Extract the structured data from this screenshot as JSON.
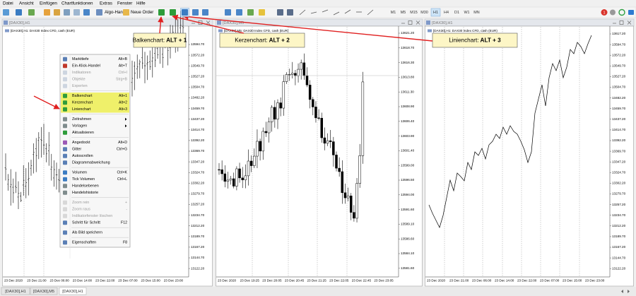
{
  "menubar": [
    "Datei",
    "Ansicht",
    "Einfügen",
    "Chartfunktionen",
    "Extras",
    "Fenster",
    "Hilfe"
  ],
  "toolbar": {
    "algo": "Algo-Handel",
    "order": "Neue Order",
    "timeframes": [
      "M1",
      "M5",
      "M15",
      "M30",
      "H1",
      "H4",
      "D1",
      "W1",
      "MN"
    ],
    "active_timeframe": "H1",
    "badge": "1"
  },
  "windows": [
    {
      "title": "[DAX30],H1",
      "info": "[DAX30],H1: DAX30 Index CFD, cash (EUR)",
      "chart": "bar",
      "prices": [
        "13594.70",
        "13572.20",
        "13549.70",
        "13527.20",
        "13504.70",
        "13482.20",
        "13459.70",
        "13437.20",
        "13414.70",
        "13392.20",
        "13369.70",
        "13347.20",
        "13324.70",
        "13302.20",
        "13279.70",
        "13257.20",
        "13234.70",
        "13212.20",
        "13189.70",
        "13167.20",
        "13144.70",
        "13122.20"
      ],
      "times": [
        "23 Dec 2020",
        "23 Dec 21:00",
        "23 Dec 06:00",
        "23 Dec 14:00",
        "23 Dec 22:00",
        "23 Dec 07:00",
        "23 Dec 15:00",
        "23 Dec 23:00"
      ]
    },
    {
      "title": "[DAX30],M5",
      "info": "[DAX30],M5: DAX30 Index CFD, cash (EUR)",
      "chart": "candle",
      "prices": [
        "13621.20",
        "13618.70",
        "13616.30",
        "13613.80",
        "13611.30",
        "13608.90",
        "13606.40",
        "13603.90",
        "13601.40",
        "13599.00",
        "13596.50",
        "13594.00",
        "13591.60",
        "13589.10",
        "13586.60",
        "13584.10",
        "13581.60"
      ],
      "times": [
        "23 Dec 2020",
        "23 Dec 19:25",
        "23 Dec 20:05",
        "23 Dec 20:45",
        "23 Dec 21:25",
        "23 Dec 22:05",
        "23 Dec 22:45",
        "23 Dec 23:05"
      ]
    },
    {
      "title": "[DAX30],H1",
      "info": "[DAX30],H1: DAX30 Index CFD, cash (EUR)",
      "chart": "line",
      "prices": [
        "13617.20",
        "13594.70",
        "13572.20",
        "13549.70",
        "13527.20",
        "13504.70",
        "13482.20",
        "13459.70",
        "13437.20",
        "13414.70",
        "13392.20",
        "13369.70",
        "13347.20",
        "13324.70",
        "13302.20",
        "13279.70",
        "13257.20",
        "13234.70",
        "13212.20",
        "13189.70",
        "13167.20",
        "13144.70",
        "13122.20"
      ],
      "times": [
        "23 Dec 2020",
        "23 Dec 21:00",
        "23 Dec 06:00",
        "23 Dec 14:00",
        "23 Dec 22:00",
        "23 Dec 07:00",
        "23 Dec 15:00",
        "23 Dec 23:00"
      ]
    }
  ],
  "context_menu": {
    "sections": [
      [
        {
          "label": "Markttiefe",
          "shortcut": "Alt+B"
        },
        {
          "label": "Ein-Klick-Handel",
          "shortcut": "Alt+T"
        },
        {
          "label": "Indikatoren",
          "shortcut": "Ctrl+I",
          "disabled": true
        },
        {
          "label": "Objekte",
          "shortcut": "Strg+B",
          "disabled": true
        },
        {
          "label": "Experten",
          "disabled": true
        }
      ],
      [
        {
          "label": "Balkenchart",
          "shortcut": "Alt+1",
          "highlighted": true
        },
        {
          "label": "Kerzenchart",
          "shortcut": "Alt+2",
          "highlighted": true
        },
        {
          "label": "Linienchart",
          "shortcut": "Alt+3",
          "highlighted": true
        }
      ],
      [
        {
          "label": "Zeitrahmen",
          "submenu": true
        },
        {
          "label": "Vorlagen",
          "submenu": true
        },
        {
          "label": "Aktualisieren"
        }
      ],
      [
        {
          "label": "Angedockt",
          "shortcut": "Alt+D"
        },
        {
          "label": "Gitter",
          "shortcut": "Ctrl+G"
        },
        {
          "label": "Autoscrollen"
        },
        {
          "label": "Diagrammabweichung"
        }
      ],
      [
        {
          "label": "Volumen",
          "shortcut": "Ctrl+K"
        },
        {
          "label": "Tick Volumen",
          "shortcut": "Ctrl+L"
        },
        {
          "label": "Handelsebenen"
        },
        {
          "label": "Handelshistorie"
        }
      ],
      [
        {
          "label": "Zoom rein",
          "shortcut": "+",
          "disabled": true
        },
        {
          "label": "Zoom raus",
          "shortcut": "-",
          "disabled": true
        },
        {
          "label": "Indikatorfenster löschen",
          "disabled": true
        },
        {
          "label": "Schritt für Schritt",
          "shortcut": "F12"
        }
      ],
      [
        {
          "label": "Als Bild speichern"
        }
      ],
      [
        {
          "label": "Eigenschaften",
          "shortcut": "F8"
        }
      ]
    ]
  },
  "callouts": [
    {
      "label": "Balkenchart:",
      "keys": "ALT + 1"
    },
    {
      "label": "Kerzenchart:",
      "keys": "ALT + 2"
    },
    {
      "label": "Linienchart:",
      "keys": "ALT + 3"
    }
  ],
  "tabs": [
    "[DAX30],H1",
    "[DAX30],M5",
    "[DAX30],H1"
  ]
}
